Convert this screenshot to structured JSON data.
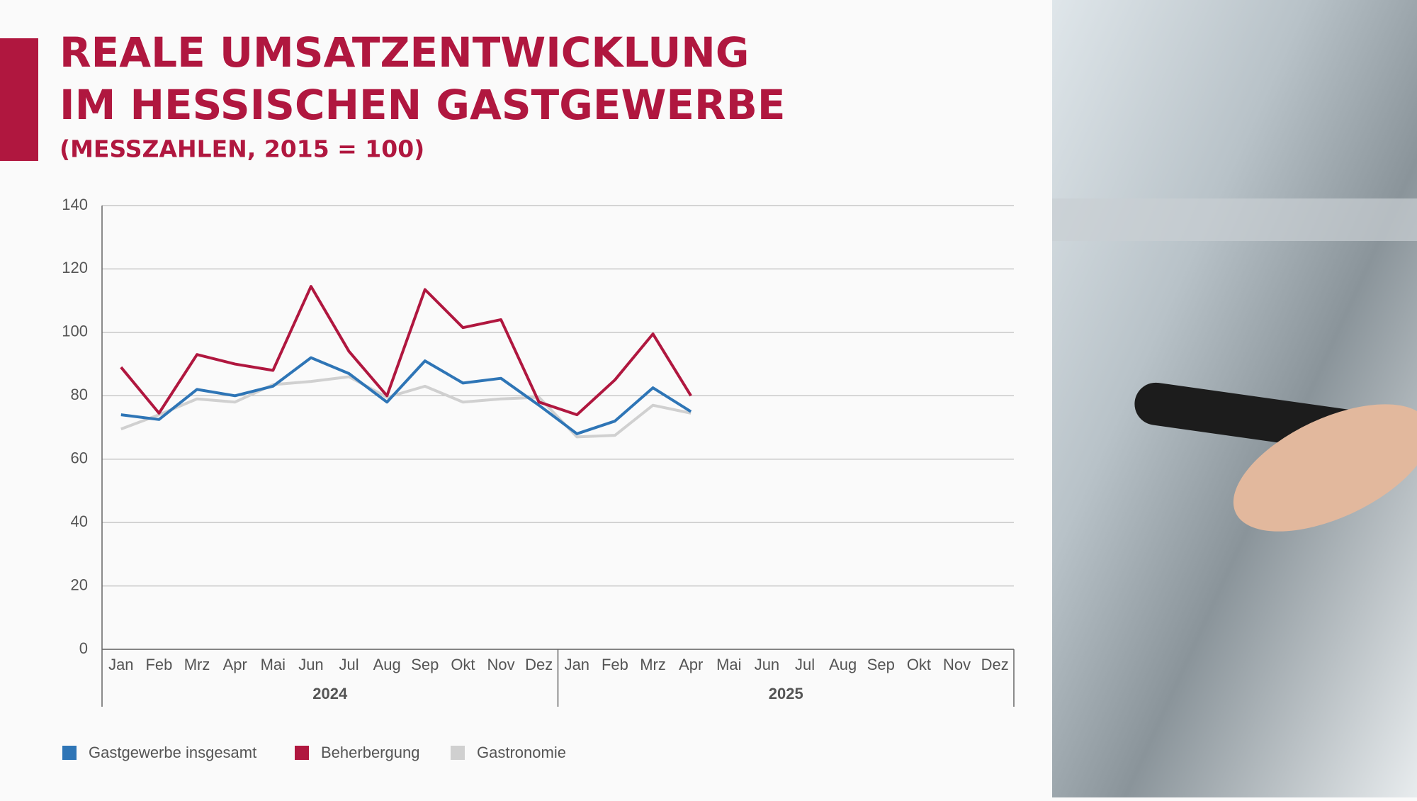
{
  "chart_data": {
    "type": "line",
    "title": [
      "REALE UMSATZENTWICKLUNG",
      "IM HESSISCHEN GASTGEWERBE"
    ],
    "subtitle": "(MESSZAHLEN, 2015 = 100)",
    "categories": [
      "Jan",
      "Feb",
      "Mrz",
      "Apr",
      "Mai",
      "Jun",
      "Jul",
      "Aug",
      "Sep",
      "Okt",
      "Nov",
      "Dez",
      "Jan",
      "Feb",
      "Mrz",
      "Apr",
      "Mai",
      "Jun",
      "Jul",
      "Aug",
      "Sep",
      "Okt",
      "Nov",
      "Dez"
    ],
    "x_groups": [
      "2024",
      "2025"
    ],
    "series": [
      {
        "name": "Gastgewerbe insgesamt",
        "color": "#2e75b6",
        "values": [
          74,
          72.5,
          82,
          80,
          83,
          92,
          87,
          78,
          91,
          84,
          85.5,
          77,
          68,
          72,
          82.5,
          75,
          null,
          null,
          null,
          null,
          null,
          null,
          null,
          null
        ]
      },
      {
        "name": "Beherbergung",
        "color": "#b0173f",
        "values": [
          89,
          74.5,
          93,
          90,
          88,
          114.5,
          94,
          80,
          113.5,
          101.5,
          104,
          78,
          74,
          85,
          99.5,
          80,
          null,
          null,
          null,
          null,
          null,
          null,
          null,
          null
        ]
      },
      {
        "name": "Gastronomie",
        "color": "#d0d0d0",
        "values": [
          69.5,
          74,
          79,
          78,
          83.5,
          84.5,
          86,
          79.5,
          83,
          78,
          79,
          79.5,
          67,
          67.5,
          77,
          74.5,
          null,
          null,
          null,
          null,
          null,
          null,
          null,
          null
        ]
      }
    ],
    "ylim": [
      0,
      140
    ],
    "yticks": [
      0,
      20,
      40,
      60,
      80,
      100,
      120,
      140
    ],
    "grid": true,
    "legend": "bottom"
  }
}
